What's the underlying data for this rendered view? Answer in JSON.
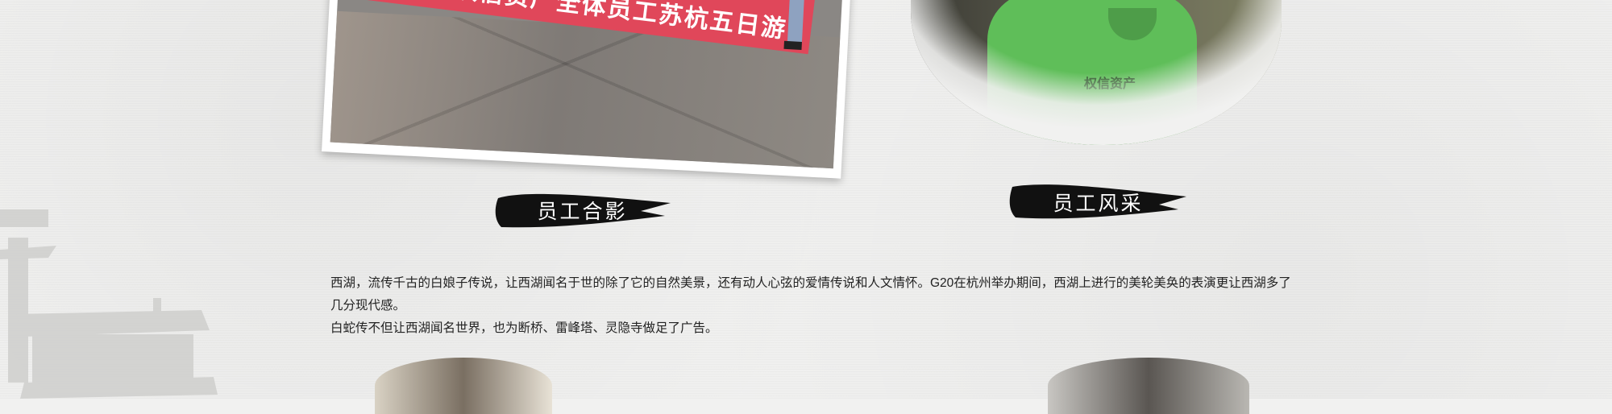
{
  "gallery": {
    "photo_1": {
      "banner_text": "权信资产全体员工苏杭五日游"
    },
    "photo_2": {
      "shirt_logo": "权信资产"
    }
  },
  "labels": {
    "group_photo": "员工合影",
    "staff_style": "员工风采"
  },
  "description": {
    "paragraph_1": "西湖，流传千古的白娘子传说，让西湖闻名于世的除了它的自然美景，还有动人心弦的爱情传说和人文情怀。G20在杭州举办期间，西湖上进行的美轮美奂的表演更让西湖多了几分现代感。",
    "paragraph_2": "白蛇传不但让西湖闻名世界，也为断桥、雷峰塔、灵隐寺做足了广告。"
  },
  "colors": {
    "background": "#f1f1f0",
    "banner": "#e0475a",
    "shirt": "#5fbe59",
    "brush": "#111111"
  }
}
